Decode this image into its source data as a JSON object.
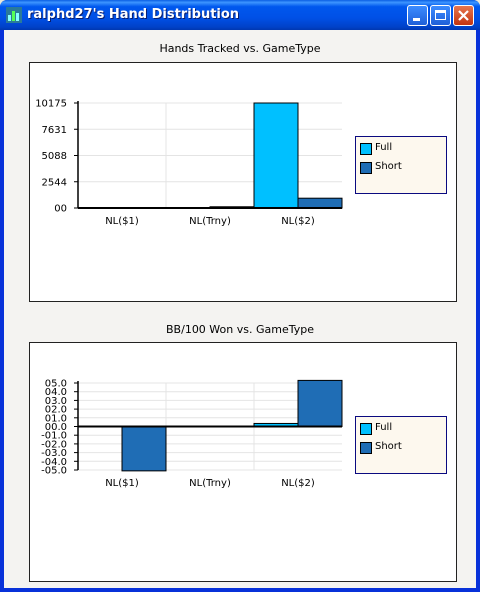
{
  "window": {
    "title": "ralphd27's Hand Distribution",
    "controls": [
      "minimize-icon",
      "maximize-icon",
      "close-icon"
    ]
  },
  "colors": {
    "full": "#00c0ff",
    "short": "#1f6db5",
    "title_bar": "#0058ee"
  },
  "chart_data": [
    {
      "type": "bar",
      "title": "Hands Tracked vs. GameType",
      "categories": [
        "NL($1)",
        "NL(Trny)",
        "NL($2)"
      ],
      "y_ticks": [
        "00",
        "2544",
        "5088",
        "7631",
        "10175"
      ],
      "ylim": [
        0,
        10175
      ],
      "series": [
        {
          "name": "Full",
          "values": [
            0,
            0,
            10175
          ]
        },
        {
          "name": "Short",
          "values": [
            0,
            120,
            950
          ]
        }
      ],
      "legend": "right",
      "grid": true
    },
    {
      "type": "bar",
      "title": "BB/100 Won vs. GameType",
      "categories": [
        "NL($1)",
        "NL(Trny)",
        "NL($2)"
      ],
      "y_ticks": [
        "-05.0",
        "-04.0",
        "-03.0",
        "-02.0",
        "-01.0",
        "00.0",
        "01.0",
        "02.0",
        "03.0",
        "04.0",
        "05.0"
      ],
      "ylim": [
        -5,
        5
      ],
      "series": [
        {
          "name": "Full",
          "values": [
            0,
            0,
            0.35
          ]
        },
        {
          "name": "Short",
          "values": [
            -5.1,
            0,
            5.3
          ]
        }
      ],
      "legend": "right",
      "grid": true
    }
  ]
}
